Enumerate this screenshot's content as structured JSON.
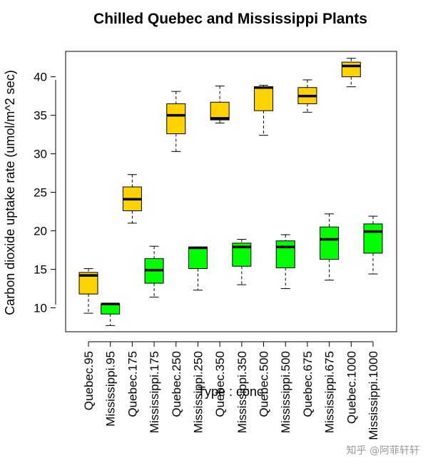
{
  "chart_data": {
    "type": "boxplot",
    "title": "Chilled Quebec and Mississippi Plants",
    "xlabel": "Type : conc",
    "ylabel": "Carbon dioxide uptake rate (umol/m^2 sec)",
    "yticks": [
      10,
      15,
      20,
      25,
      30,
      35,
      40
    ],
    "ylim": [
      6.9,
      43.3
    ],
    "grid": false,
    "colors": {
      "Quebec": "#ffd200",
      "Mississippi": "#00ff00"
    },
    "boxes": [
      {
        "label": "Quebec.95",
        "group": "Quebec",
        "min": 9.3,
        "q1": 11.8,
        "median": 14.2,
        "q3": 14.6,
        "max": 15.1
      },
      {
        "label": "Mississippi.95",
        "group": "Mississippi",
        "min": 7.7,
        "q1": 9.2,
        "median": 10.5,
        "q3": 10.5,
        "max": 10.5
      },
      {
        "label": "Quebec.175",
        "group": "Quebec",
        "min": 21.0,
        "q1": 22.6,
        "median": 24.1,
        "q3": 25.7,
        "max": 27.3
      },
      {
        "label": "Mississippi.175",
        "group": "Mississippi",
        "min": 11.4,
        "q1": 13.2,
        "median": 14.9,
        "q3": 16.4,
        "max": 18.0
      },
      {
        "label": "Quebec.250",
        "group": "Quebec",
        "min": 30.3,
        "q1": 32.6,
        "median": 35.0,
        "q3": 36.5,
        "max": 38.1
      },
      {
        "label": "Mississippi.250",
        "group": "Mississippi",
        "min": 12.3,
        "q1": 15.1,
        "median": 17.8,
        "q3": 17.9,
        "max": 17.9
      },
      {
        "label": "Quebec.350",
        "group": "Quebec",
        "min": 34.0,
        "q1": 34.4,
        "median": 34.6,
        "q3": 36.7,
        "max": 38.8
      },
      {
        "label": "Mississippi.350",
        "group": "Mississippi",
        "min": 13.0,
        "q1": 15.4,
        "median": 17.9,
        "q3": 18.4,
        "max": 18.9
      },
      {
        "label": "Quebec.500",
        "group": "Quebec",
        "min": 32.4,
        "q1": 35.6,
        "median": 38.6,
        "q3": 38.7,
        "max": 38.9
      },
      {
        "label": "Mississippi.500",
        "group": "Mississippi",
        "min": 12.5,
        "q1": 15.2,
        "median": 17.9,
        "q3": 18.7,
        "max": 19.5
      },
      {
        "label": "Quebec.675",
        "group": "Quebec",
        "min": 35.4,
        "q1": 36.5,
        "median": 37.5,
        "q3": 38.6,
        "max": 39.6
      },
      {
        "label": "Mississippi.675",
        "group": "Mississippi",
        "min": 13.6,
        "q1": 16.3,
        "median": 18.9,
        "q3": 20.5,
        "max": 22.2
      },
      {
        "label": "Quebec.1000",
        "group": "Quebec",
        "min": 38.7,
        "q1": 40.0,
        "median": 41.4,
        "q3": 41.9,
        "max": 42.4
      },
      {
        "label": "Mississippi.1000",
        "group": "Mississippi",
        "min": 14.4,
        "q1": 17.1,
        "median": 19.9,
        "q3": 20.9,
        "max": 21.9
      }
    ]
  },
  "watermark": "知乎 @阿菲轩轩"
}
